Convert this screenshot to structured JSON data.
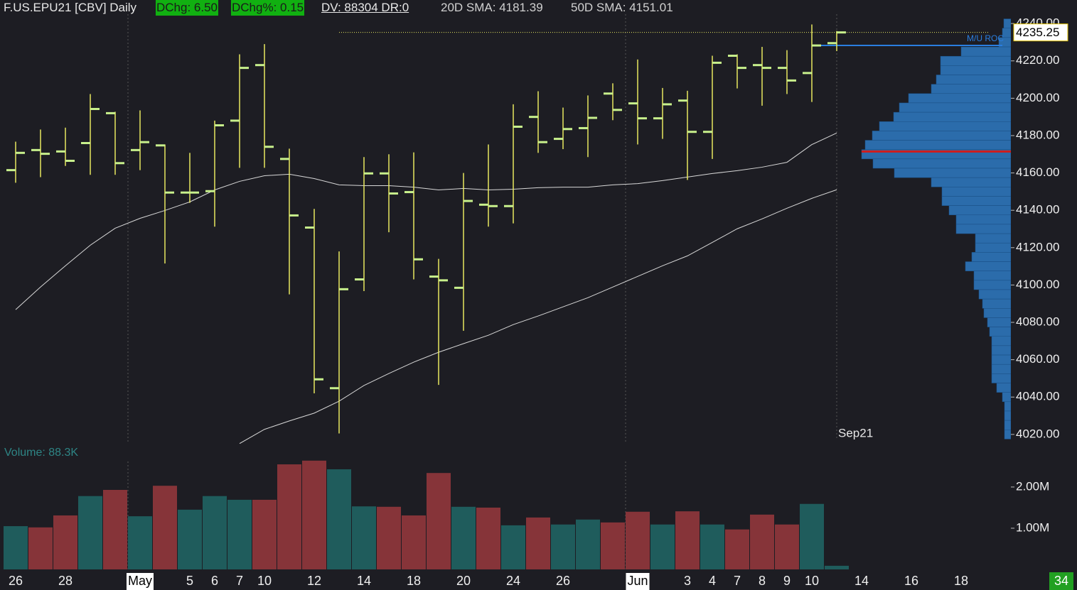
{
  "chart_data": {
    "type": "ohlc",
    "title": "F.US.EPU21 [CBV] Daily",
    "stats": [
      "DChg: 6.50",
      "DChg%: 0.15",
      "DV: 88304 DR:0",
      "20D SMA: 4181.39",
      "50D SMA: 4151.01"
    ],
    "categories": [
      "26",
      null,
      "28",
      null,
      null,
      "May",
      null,
      "5",
      "6",
      "7",
      "10",
      null,
      "12",
      null,
      "14",
      null,
      "18",
      null,
      "20",
      null,
      "24",
      null,
      "26",
      null,
      null,
      "Jun",
      null,
      "3",
      "4",
      "7",
      "8",
      "9",
      "10",
      null,
      "14",
      null,
      "16",
      null,
      "18"
    ],
    "open": [
      4161.5,
      4172.25,
      4171.5,
      4176,
      4192,
      4172.25,
      4174.75,
      4149.5,
      4150.25,
      4188,
      4217.75,
      4167.5,
      4130.75,
      4044.75,
      4103,
      4159.75,
      4149.75,
      4104.5,
      4098.5,
      4143,
      4142.25,
      4190,
      4178.25,
      4184,
      4202.5,
      4197.25,
      4189.25,
      4198.75,
      4182,
      4222.75,
      4217.75,
      4216.25,
      4213.5,
      4229.5,
      null,
      null,
      null,
      null,
      null
    ],
    "high": [
      4176.75,
      4183.25,
      4184.25,
      4202.25,
      4192.75,
      4193.5,
      4175.25,
      4170.75,
      4188,
      4223.5,
      4229,
      4173,
      4140.75,
      4118,
      4168.5,
      4170,
      4171,
      4114,
      4160,
      4175.25,
      4196.75,
      4203.75,
      4195,
      4201.5,
      4208,
      4220.75,
      4205.5,
      4204,
      4222.75,
      4223.5,
      4227.5,
      4225.75,
      4239.5,
      4236,
      null,
      null,
      null,
      null,
      null
    ],
    "low": [
      4154.75,
      4157.75,
      4163.75,
      4159,
      4159,
      4161.5,
      4111.5,
      4144,
      4131.25,
      4162.75,
      4162.75,
      4095,
      4042,
      4020.5,
      4096.75,
      4128.25,
      4103,
      4046.5,
      4075.5,
      4131.25,
      4133,
      4170.75,
      4172.75,
      4168.5,
      4188.25,
      4175.25,
      4178.25,
      4156.25,
      4167.5,
      4205.25,
      4196,
      4202.25,
      4198,
      4225.25,
      null,
      null,
      null,
      null,
      null
    ],
    "close": [
      4170.75,
      4170.25,
      4166.5,
      4194.25,
      4165.25,
      4176.5,
      4149.5,
      4149.5,
      4185.5,
      4216.25,
      4174,
      4137.25,
      4049.5,
      4097.75,
      4159.75,
      4149,
      4113.75,
      4102.5,
      4145,
      4142.25,
      4184.75,
      4176.5,
      4183.5,
      4189.5,
      4193.75,
      4189.25,
      4196.75,
      4182,
      4219,
      4216.25,
      4216.25,
      4209.5,
      4228.25,
      4235.25,
      null,
      null,
      null,
      null,
      null
    ],
    "bar_color": "#e8e860",
    "tick_color": "#c8f08c",
    "ylim": [
      4015,
      4245
    ],
    "yticks": [
      {
        "value": 4020,
        "label": "4020.00"
      },
      {
        "value": 4040,
        "label": "4040.00"
      },
      {
        "value": 4060,
        "label": "4060.00"
      },
      {
        "value": 4080,
        "label": "4080.00"
      },
      {
        "value": 4100,
        "label": "4100.00"
      },
      {
        "value": 4120,
        "label": "4120.00"
      },
      {
        "value": 4140,
        "label": "4140.00"
      },
      {
        "value": 4160,
        "label": "4160.00"
      },
      {
        "value": 4180,
        "label": "4180.00"
      },
      {
        "value": 4200,
        "label": "4200.00"
      },
      {
        "value": 4220,
        "label": "4220.00"
      },
      {
        "value": 4240,
        "label": "4240.00"
      }
    ],
    "last_price": 4235.25,
    "contract": "Sep21",
    "sma": [
      {
        "color": "#d8d8d8",
        "values": [
          4086.8,
          4098.9,
          4110.3,
          4121.3,
          4130.4,
          4135.7,
          4139.9,
          4144.5,
          4150.9,
          4155.5,
          4158.5,
          4159.3,
          4157,
          4153.6,
          4153.2,
          4153.2,
          4152.4,
          4150.9,
          4151.7,
          4150.9,
          4151.3,
          4152.1,
          4152.4,
          4152.4,
          4153.6,
          4154.3,
          4155.9,
          4157.8,
          4159.7,
          4161.2,
          4163.1,
          4165.7,
          4175.2,
          4181.39,
          null,
          null,
          null,
          null,
          null
        ]
      },
      {
        "color": "#d8d8d8",
        "values": [
          null,
          null,
          null,
          null,
          null,
          null,
          null,
          null,
          null,
          4015.1,
          4022.7,
          4027.2,
          4031.4,
          4037.8,
          4046.2,
          4052.6,
          4058.7,
          4064,
          4068.6,
          4073.1,
          4078.8,
          4083.4,
          4088.3,
          4093.2,
          4098.9,
          4104.6,
          4110.3,
          4115.6,
          4122.8,
          4130.1,
          4135.4,
          4141.1,
          4146.4,
          4151.01,
          null,
          null,
          null,
          null,
          null
        ]
      }
    ],
    "roc": {
      "label": "M/U ROC",
      "value": 4228.25,
      "color": "#2a7ee0"
    },
    "poc": 4171.5,
    "volume_profile": {
      "color": "#2b6cab",
      "prices": [
        4240,
        4235,
        4230,
        4225,
        4220,
        4215,
        4210,
        4205,
        4200,
        4195,
        4190,
        4185,
        4180,
        4175,
        4170,
        4165,
        4160,
        4155,
        4150,
        4145,
        4140,
        4135,
        4130,
        4125,
        4120,
        4115,
        4110,
        4105,
        4100,
        4095,
        4090,
        4085,
        4080,
        4075,
        4070,
        4065,
        4060,
        4055,
        4050,
        4045,
        4040,
        4035,
        4030,
        4025,
        4020
      ],
      "values": [
        10,
        12,
        17,
        70,
        99,
        99,
        105,
        112,
        144,
        157,
        165,
        185,
        195,
        205,
        210,
        194,
        164,
        112,
        97,
        97,
        87,
        77,
        77,
        50,
        50,
        55,
        64,
        52,
        52,
        45,
        40,
        38,
        33,
        30,
        27,
        27,
        27,
        27,
        27,
        20,
        12,
        9,
        9,
        9,
        9
      ]
    },
    "volume": {
      "label": "Volume: 88.3K",
      "values": [
        1.05,
        1.02,
        1.31,
        1.78,
        1.93,
        1.29,
        2.03,
        1.45,
        1.78,
        1.69,
        1.69,
        2.55,
        2.64,
        2.43,
        1.53,
        1.52,
        1.31,
        2.34,
        1.52,
        1.5,
        1.07,
        1.26,
        1.09,
        1.21,
        1.14,
        1.4,
        1.09,
        1.41,
        1.09,
        0.97,
        1.33,
        1.09,
        1.59,
        0.0883,
        null,
        null,
        null,
        null,
        null
      ],
      "ylim": [
        0,
        3.05
      ],
      "yticks": [
        {
          "value": 1,
          "label": "1.00M"
        },
        {
          "value": 2,
          "label": "2.00M"
        }
      ],
      "up_color": "#1f5c5c",
      "down_color": "#863439"
    },
    "bar_count": 34
  }
}
